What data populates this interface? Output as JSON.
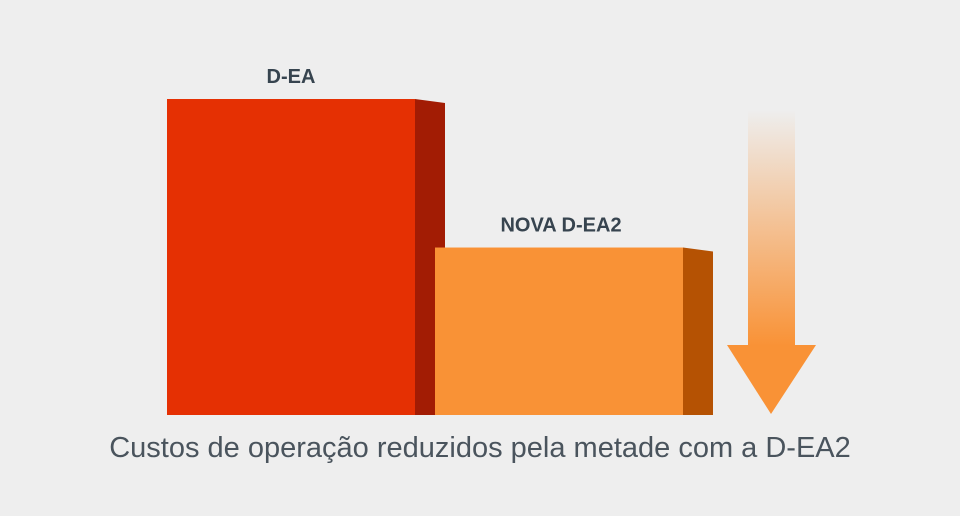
{
  "chart_data": {
    "type": "bar",
    "title": "",
    "categories": [
      "D-EA",
      "NOVA D-EA2"
    ],
    "values": [
      100,
      53
    ],
    "ylim": [
      0,
      100
    ],
    "xlabel": "",
    "ylabel": "",
    "annotation": "downward arrow indicating cost reduction",
    "caption": "Custos de operação reduzidos pela metade com a D-EA2",
    "colors": {
      "bar1_front": "#e53003",
      "bar1_side": "#a21c04",
      "bar2_front": "#f99236",
      "bar2_side": "#b55203",
      "arrow": "#f99236",
      "text": "#37444f"
    }
  }
}
